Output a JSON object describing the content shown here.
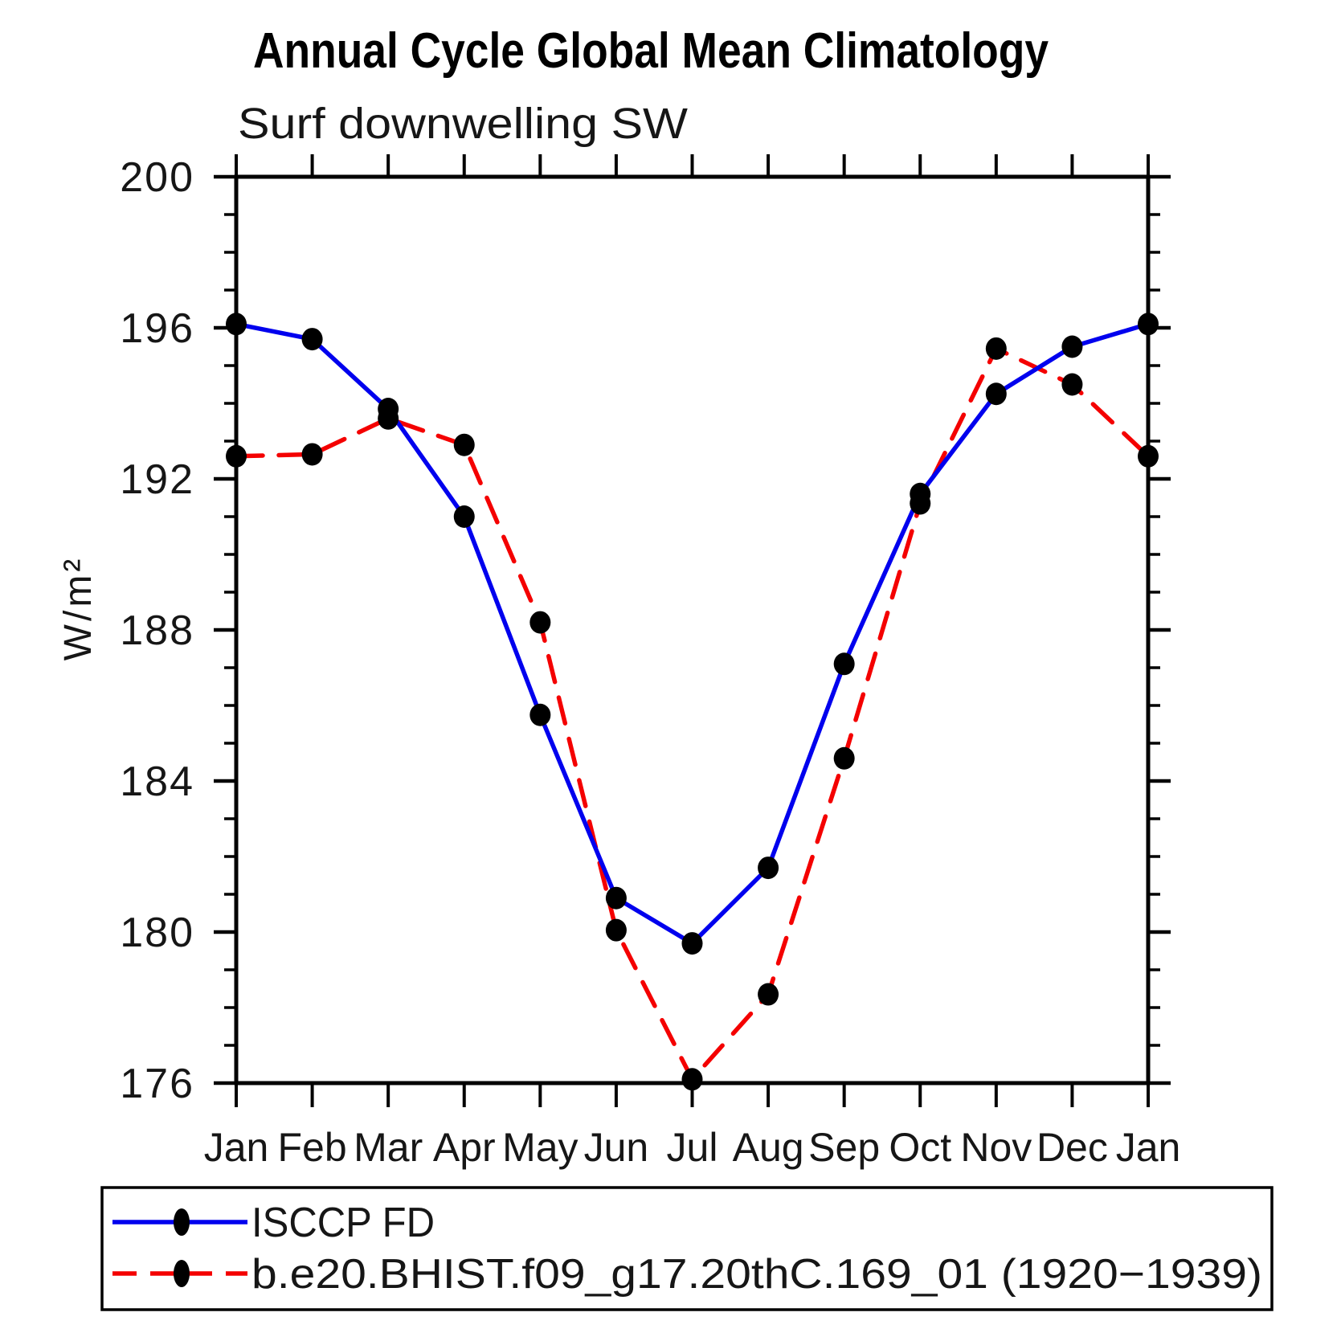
{
  "title": "Annual Cycle Global Mean Climatology",
  "subtitle": "Surf downwelling SW",
  "ylabel": "W/m²",
  "legend": {
    "entries": [
      {
        "label": "ISCCP FD",
        "color": "#0000ee",
        "style": "solid",
        "marker": "filled-ellipse"
      },
      {
        "label": "b.e20.BHIST.f09_g17.20thC.169_01 (1920−1939)",
        "color": "#f40000",
        "style": "dashed",
        "marker": "filled-ellipse"
      }
    ],
    "position": "bottom-left-box"
  },
  "chart_data": {
    "type": "line",
    "categories": [
      "Jan",
      "Feb",
      "Mar",
      "Apr",
      "May",
      "Jun",
      "Jul",
      "Aug",
      "Sep",
      "Oct",
      "Nov",
      "Dec",
      "Jan"
    ],
    "series": [
      {
        "name": "ISCCP FD",
        "color": "#0000ee",
        "line_style": "solid",
        "marker": "black-dot",
        "values": [
          196.1,
          195.7,
          193.85,
          191.0,
          185.75,
          180.9,
          179.7,
          181.7,
          187.1,
          191.6,
          194.25,
          195.5,
          196.1
        ]
      },
      {
        "name": "b.e20.BHIST.f09_g17.20thC.169_01 (1920−1939)",
        "color": "#f40000",
        "line_style": "dashed",
        "marker": "black-dot",
        "values": [
          192.6,
          192.65,
          193.6,
          192.9,
          188.2,
          180.05,
          176.1,
          178.35,
          184.6,
          191.35,
          195.45,
          194.5,
          192.6
        ]
      }
    ],
    "ylim": [
      176,
      200
    ],
    "ytick_major": [
      176,
      180,
      184,
      188,
      192,
      196,
      200
    ],
    "ytick_minor_step": 1,
    "xlabel": "",
    "grid": false,
    "marker_color": "#000000",
    "legend_position": "bottom-left-box"
  }
}
